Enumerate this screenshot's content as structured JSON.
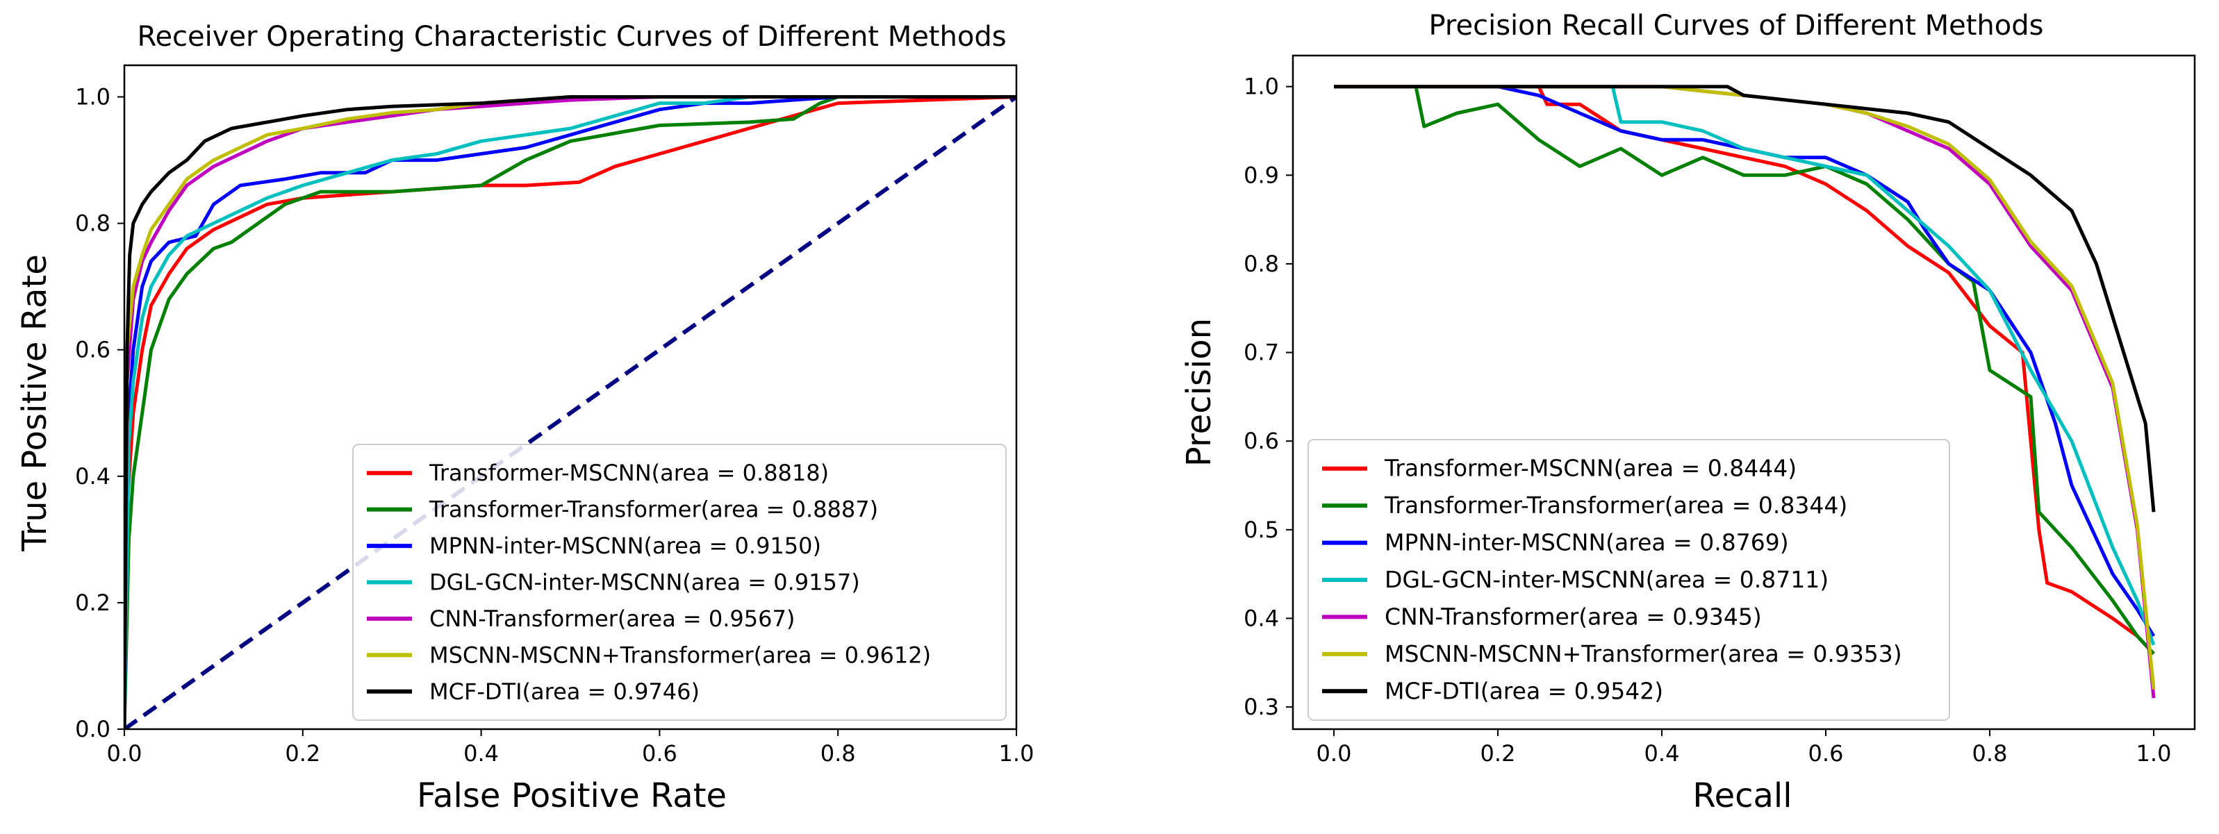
{
  "colors": {
    "Transformer-MSCNN": "#ff0000",
    "Transformer-Transformer": "#008000",
    "MPNN-inter-MSCNN": "#0000ff",
    "DGL-GCN-inter-MSCNN": "#00bfbf",
    "CNN-Transformer": "#bf00bf",
    "MSCNN-MSCNN+Transformer": "#bfbf00",
    "MCF-DTI": "#000000",
    "diagonal": "#000080"
  },
  "chart_data": [
    {
      "type": "line",
      "title": "Receiver Operating Characteristic Curves of Different Methods",
      "xlabel": "False Positive Rate",
      "ylabel": "True Positive Rate",
      "xlim": [
        0,
        1
      ],
      "ylim": [
        0,
        1.05
      ],
      "xticks": [
        "0.0",
        "0.2",
        "0.4",
        "0.6",
        "0.8",
        "1.0"
      ],
      "yticks": [
        "0.0",
        "0.2",
        "0.4",
        "0.6",
        "0.8",
        "1.0"
      ],
      "legend_position": "lower-right",
      "grid": false,
      "diagonal": {
        "x": [
          0,
          1
        ],
        "y": [
          0,
          1
        ],
        "style": "dashed"
      },
      "series": [
        {
          "name": "Transformer-MSCNN(area = 0.8818)",
          "key": "Transformer-MSCNN",
          "x": [
            0,
            0.003,
            0.01,
            0.02,
            0.03,
            0.05,
            0.07,
            0.1,
            0.13,
            0.16,
            0.2,
            0.25,
            0.3,
            0.35,
            0.4,
            0.45,
            0.51,
            0.55,
            0.6,
            0.65,
            0.7,
            0.75,
            0.8,
            1.0
          ],
          "y": [
            0,
            0.35,
            0.5,
            0.6,
            0.67,
            0.72,
            0.76,
            0.79,
            0.81,
            0.83,
            0.84,
            0.845,
            0.85,
            0.855,
            0.86,
            0.86,
            0.865,
            0.89,
            0.91,
            0.93,
            0.95,
            0.97,
            0.99,
            1.0
          ]
        },
        {
          "name": "Transformer-Transformer(area = 0.8887)",
          "key": "Transformer-Transformer",
          "x": [
            0,
            0.005,
            0.01,
            0.02,
            0.03,
            0.05,
            0.07,
            0.1,
            0.12,
            0.15,
            0.18,
            0.22,
            0.3,
            0.4,
            0.45,
            0.5,
            0.6,
            0.7,
            0.75,
            0.78,
            0.8,
            1.0
          ],
          "y": [
            0,
            0.3,
            0.4,
            0.5,
            0.6,
            0.68,
            0.72,
            0.76,
            0.77,
            0.8,
            0.83,
            0.85,
            0.85,
            0.86,
            0.9,
            0.93,
            0.955,
            0.96,
            0.965,
            0.99,
            1.0,
            1.0
          ]
        },
        {
          "name": "MPNN-inter-MSCNN(area = 0.9150)",
          "key": "MPNN-inter-MSCNN",
          "x": [
            0,
            0.005,
            0.01,
            0.02,
            0.03,
            0.05,
            0.08,
            0.1,
            0.13,
            0.18,
            0.22,
            0.27,
            0.3,
            0.35,
            0.4,
            0.45,
            0.5,
            0.55,
            0.6,
            0.65,
            0.7,
            0.8,
            1.0
          ],
          "y": [
            0,
            0.5,
            0.6,
            0.7,
            0.74,
            0.77,
            0.78,
            0.83,
            0.86,
            0.87,
            0.88,
            0.88,
            0.9,
            0.9,
            0.91,
            0.92,
            0.94,
            0.96,
            0.98,
            0.99,
            0.99,
            1.0,
            1.0
          ]
        },
        {
          "name": "DGL-GCN-inter-MSCNN(area = 0.9157)",
          "key": "DGL-GCN-inter-MSCNN",
          "x": [
            0,
            0.005,
            0.01,
            0.02,
            0.03,
            0.05,
            0.07,
            0.1,
            0.13,
            0.16,
            0.2,
            0.25,
            0.3,
            0.35,
            0.4,
            0.45,
            0.5,
            0.55,
            0.6,
            0.65,
            0.7,
            1.0
          ],
          "y": [
            0,
            0.45,
            0.55,
            0.65,
            0.7,
            0.75,
            0.78,
            0.8,
            0.82,
            0.84,
            0.86,
            0.88,
            0.9,
            0.91,
            0.93,
            0.94,
            0.95,
            0.97,
            0.99,
            0.99,
            1.0,
            1.0
          ]
        },
        {
          "name": "CNN-Transformer(area = 0.9567)",
          "key": "CNN-Transformer",
          "x": [
            0,
            0.003,
            0.01,
            0.02,
            0.03,
            0.05,
            0.07,
            0.1,
            0.13,
            0.16,
            0.2,
            0.25,
            0.3,
            0.35,
            0.4,
            0.45,
            0.5,
            0.6,
            1.0
          ],
          "y": [
            0,
            0.55,
            0.68,
            0.74,
            0.77,
            0.82,
            0.86,
            0.89,
            0.91,
            0.93,
            0.95,
            0.96,
            0.97,
            0.98,
            0.985,
            0.99,
            0.995,
            1.0,
            1.0
          ]
        },
        {
          "name": "MSCNN-MSCNN+Transformer(area = 0.9612)",
          "key": "MSCNN-MSCNN+Transformer",
          "x": [
            0,
            0.003,
            0.01,
            0.02,
            0.03,
            0.05,
            0.07,
            0.1,
            0.13,
            0.16,
            0.2,
            0.25,
            0.3,
            0.35,
            0.4,
            0.45,
            0.5,
            0.6,
            1.0
          ],
          "y": [
            0,
            0.6,
            0.7,
            0.75,
            0.79,
            0.83,
            0.87,
            0.9,
            0.92,
            0.94,
            0.95,
            0.965,
            0.975,
            0.98,
            0.99,
            0.995,
            1.0,
            1.0,
            1.0
          ]
        },
        {
          "name": "MCF-DTI(area = 0.9746)",
          "key": "MCF-DTI",
          "x": [
            0,
            0.003,
            0.006,
            0.01,
            0.02,
            0.03,
            0.05,
            0.07,
            0.09,
            0.12,
            0.16,
            0.2,
            0.25,
            0.3,
            0.4,
            0.5,
            0.6,
            1.0
          ],
          "y": [
            0,
            0.6,
            0.75,
            0.8,
            0.83,
            0.85,
            0.88,
            0.9,
            0.93,
            0.95,
            0.96,
            0.97,
            0.98,
            0.985,
            0.99,
            1.0,
            1.0,
            1.0
          ]
        }
      ]
    },
    {
      "type": "line",
      "title": "Precision Recall Curves of Different Methods",
      "xlabel": "Recall",
      "ylabel": "Precision",
      "xlim": [
        -0.05,
        1.05
      ],
      "ylim": [
        0.275,
        1.035
      ],
      "xticks": [
        "0.0",
        "0.2",
        "0.4",
        "0.6",
        "0.8",
        "1.0"
      ],
      "yticks": [
        "0.3",
        "0.4",
        "0.5",
        "0.6",
        "0.7",
        "0.8",
        "0.9",
        "1.0"
      ],
      "legend_position": "lower-left",
      "grid": false,
      "series": [
        {
          "name": "Transformer-MSCNN(area = 0.8444)",
          "key": "Transformer-MSCNN",
          "x": [
            0,
            0.25,
            0.26,
            0.3,
            0.35,
            0.4,
            0.45,
            0.5,
            0.55,
            0.6,
            0.65,
            0.7,
            0.75,
            0.8,
            0.84,
            0.85,
            0.86,
            0.87,
            0.9,
            0.95,
            0.98,
            1.0
          ],
          "y": [
            1.0,
            1.0,
            0.98,
            0.98,
            0.95,
            0.94,
            0.93,
            0.92,
            0.91,
            0.89,
            0.86,
            0.82,
            0.79,
            0.73,
            0.7,
            0.6,
            0.5,
            0.44,
            0.43,
            0.4,
            0.38,
            0.36
          ]
        },
        {
          "name": "Transformer-Transformer(area = 0.8344)",
          "key": "Transformer-Transformer",
          "x": [
            0,
            0.1,
            0.11,
            0.15,
            0.2,
            0.25,
            0.3,
            0.35,
            0.4,
            0.45,
            0.5,
            0.55,
            0.6,
            0.65,
            0.7,
            0.75,
            0.78,
            0.8,
            0.85,
            0.86,
            0.9,
            0.95,
            0.98,
            1.0
          ],
          "y": [
            1.0,
            1.0,
            0.955,
            0.97,
            0.98,
            0.94,
            0.91,
            0.93,
            0.9,
            0.92,
            0.9,
            0.9,
            0.91,
            0.89,
            0.85,
            0.8,
            0.78,
            0.68,
            0.65,
            0.52,
            0.48,
            0.42,
            0.38,
            0.36
          ]
        },
        {
          "name": "MPNN-inter-MSCNN(area = 0.8769)",
          "key": "MPNN-inter-MSCNN",
          "x": [
            0,
            0.2,
            0.25,
            0.3,
            0.35,
            0.4,
            0.45,
            0.5,
            0.55,
            0.6,
            0.65,
            0.7,
            0.72,
            0.75,
            0.8,
            0.85,
            0.88,
            0.9,
            0.95,
            0.98,
            1.0
          ],
          "y": [
            1.0,
            1.0,
            0.99,
            0.97,
            0.95,
            0.94,
            0.94,
            0.93,
            0.92,
            0.92,
            0.9,
            0.87,
            0.84,
            0.8,
            0.77,
            0.7,
            0.62,
            0.55,
            0.45,
            0.41,
            0.38
          ]
        },
        {
          "name": "DGL-GCN-inter-MSCNN(area = 0.8711)",
          "key": "DGL-GCN-inter-MSCNN",
          "x": [
            0,
            0.34,
            0.35,
            0.4,
            0.45,
            0.5,
            0.55,
            0.6,
            0.65,
            0.7,
            0.75,
            0.8,
            0.85,
            0.9,
            0.95,
            0.98,
            1.0
          ],
          "y": [
            1.0,
            1.0,
            0.96,
            0.96,
            0.95,
            0.93,
            0.92,
            0.91,
            0.9,
            0.86,
            0.82,
            0.77,
            0.68,
            0.6,
            0.48,
            0.42,
            0.37
          ]
        },
        {
          "name": "CNN-Transformer(area = 0.9345)",
          "key": "CNN-Transformer",
          "x": [
            0,
            0.3,
            0.4,
            0.45,
            0.5,
            0.55,
            0.6,
            0.65,
            0.7,
            0.75,
            0.8,
            0.85,
            0.9,
            0.95,
            0.98,
            1.0
          ],
          "y": [
            1.0,
            1.0,
            1.0,
            0.995,
            0.99,
            0.985,
            0.98,
            0.97,
            0.95,
            0.93,
            0.89,
            0.82,
            0.77,
            0.66,
            0.5,
            0.31
          ]
        },
        {
          "name": "MSCNN-MSCNN+Transformer(area = 0.9353)",
          "key": "MSCNN-MSCNN+Transformer",
          "x": [
            0,
            0.3,
            0.4,
            0.45,
            0.5,
            0.55,
            0.6,
            0.65,
            0.7,
            0.75,
            0.8,
            0.85,
            0.9,
            0.95,
            0.98,
            1.0
          ],
          "y": [
            1.0,
            1.0,
            1.0,
            0.995,
            0.99,
            0.985,
            0.98,
            0.97,
            0.955,
            0.935,
            0.895,
            0.825,
            0.775,
            0.665,
            0.505,
            0.32
          ]
        },
        {
          "name": "MCF-DTI(area = 0.9542)",
          "key": "MCF-DTI",
          "x": [
            0,
            0.3,
            0.4,
            0.48,
            0.5,
            0.55,
            0.6,
            0.65,
            0.7,
            0.75,
            0.8,
            0.85,
            0.9,
            0.93,
            0.95,
            0.97,
            0.99,
            1.0
          ],
          "y": [
            1.0,
            1.0,
            1.0,
            1.0,
            0.99,
            0.985,
            0.98,
            0.975,
            0.97,
            0.96,
            0.93,
            0.9,
            0.86,
            0.8,
            0.74,
            0.68,
            0.62,
            0.52
          ]
        }
      ]
    }
  ]
}
